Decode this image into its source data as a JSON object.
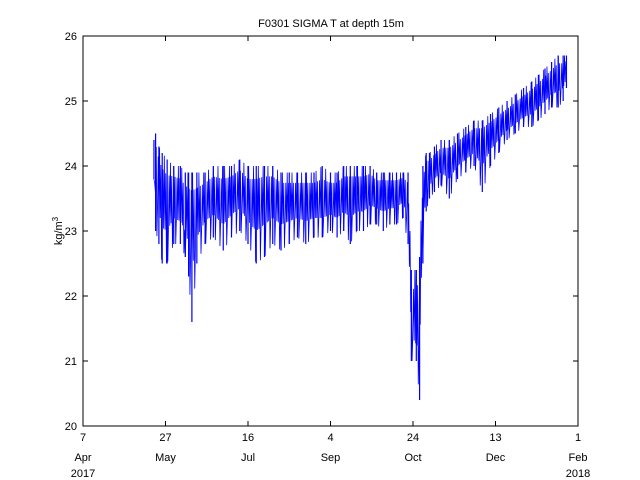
{
  "chart_data": {
    "type": "line",
    "title": "F0301 SIGMA T at depth 15m",
    "xlabel": "",
    "ylabel": "kg/m3",
    "ylabel_base": "kg/m",
    "ylabel_superscript": "3",
    "grid": false,
    "legend": "none",
    "series_color": "#0000ff",
    "xlim": [
      "2017-04-07",
      "2018-02-01"
    ],
    "ylim": [
      20,
      26
    ],
    "y_ticks": [
      20,
      21,
      22,
      23,
      24,
      25,
      26
    ],
    "x_ticks": [
      {
        "date": "2017-04-07",
        "day": "7",
        "month": "Apr",
        "year": "2017"
      },
      {
        "date": "2017-05-27",
        "day": "27",
        "month": "May",
        "year": ""
      },
      {
        "date": "2017-07-16",
        "day": "16",
        "month": "Jul",
        "year": ""
      },
      {
        "date": "2017-09-04",
        "day": "4",
        "month": "Sep",
        "year": ""
      },
      {
        "date": "2017-10-24",
        "day": "24",
        "month": "Oct",
        "year": ""
      },
      {
        "date": "2017-12-13",
        "day": "13",
        "month": "Dec",
        "year": ""
      },
      {
        "date": "2018-02-01",
        "day": "1",
        "month": "Feb",
        "year": "2018"
      }
    ],
    "series": [
      {
        "x": [
          "2017-05-20",
          "2017-05-21",
          "2017-05-23",
          "2017-05-25",
          "2017-05-28",
          "2017-06-01",
          "2017-06-05",
          "2017-06-08",
          "2017-06-10",
          "2017-06-12",
          "2017-06-15",
          "2017-06-20",
          "2017-06-25",
          "2017-07-01",
          "2017-07-06",
          "2017-07-11",
          "2017-07-16",
          "2017-07-21",
          "2017-07-26",
          "2017-07-31",
          "2017-08-05",
          "2017-08-10",
          "2017-08-15",
          "2017-08-20",
          "2017-08-25",
          "2017-08-30",
          "2017-09-04",
          "2017-09-08",
          "2017-09-12",
          "2017-09-16",
          "2017-09-20",
          "2017-09-24",
          "2017-09-28",
          "2017-10-02",
          "2017-10-06",
          "2017-10-10",
          "2017-10-14",
          "2017-10-18",
          "2017-10-21",
          "2017-10-23",
          "2017-10-26",
          "2017-10-28",
          "2017-10-30",
          "2017-11-01",
          "2017-11-03",
          "2017-11-06",
          "2017-11-10",
          "2017-11-15",
          "2017-11-20",
          "2017-11-25",
          "2017-11-30",
          "2017-12-05",
          "2017-12-10",
          "2017-12-15",
          "2017-12-20",
          "2017-12-25",
          "2017-12-30",
          "2018-01-04",
          "2018-01-08",
          "2018-01-12",
          "2018-01-16",
          "2018-01-20",
          "2018-01-23",
          "2018-01-25"
        ],
        "high": [
          24.4,
          24.5,
          24.3,
          24.2,
          24.1,
          24.0,
          24.0,
          23.9,
          23.9,
          23.9,
          23.9,
          23.9,
          24.0,
          24.0,
          24.0,
          24.1,
          24.0,
          24.0,
          24.0,
          24.0,
          23.9,
          23.9,
          23.9,
          23.9,
          23.9,
          24.0,
          23.9,
          23.9,
          24.0,
          24.0,
          24.0,
          24.0,
          24.0,
          23.9,
          23.9,
          23.9,
          23.9,
          23.9,
          23.9,
          22.4,
          22.4,
          22.6,
          24.0,
          24.2,
          24.2,
          24.3,
          24.4,
          24.4,
          24.5,
          24.6,
          24.7,
          24.7,
          24.8,
          24.9,
          25.0,
          25.1,
          25.2,
          25.3,
          25.4,
          25.5,
          25.6,
          25.7,
          25.7,
          25.7
        ],
        "low": [
          23.8,
          23.0,
          22.8,
          22.5,
          22.5,
          22.8,
          22.8,
          22.6,
          22.3,
          21.6,
          22.5,
          22.8,
          22.9,
          22.7,
          22.9,
          23.0,
          22.8,
          22.5,
          22.6,
          22.8,
          22.7,
          22.8,
          22.9,
          22.8,
          22.9,
          22.9,
          23.0,
          22.9,
          23.0,
          22.8,
          23.0,
          23.0,
          23.1,
          23.1,
          23.0,
          23.1,
          23.1,
          23.2,
          22.8,
          21.0,
          21.0,
          20.4,
          22.5,
          23.3,
          23.5,
          23.6,
          23.7,
          23.5,
          23.8,
          23.9,
          24.0,
          23.6,
          24.0,
          24.2,
          24.4,
          24.5,
          24.6,
          24.6,
          24.7,
          24.8,
          24.9,
          24.9,
          25.0,
          25.2
        ],
        "mid": [
          24.0,
          24.1,
          23.8,
          23.6,
          23.5,
          23.6,
          23.5,
          23.4,
          23.3,
          23.2,
          23.3,
          23.5,
          23.6,
          23.5,
          23.6,
          23.7,
          23.5,
          23.5,
          23.6,
          23.6,
          23.5,
          23.5,
          23.5,
          23.5,
          23.5,
          23.5,
          23.5,
          23.5,
          23.6,
          23.6,
          23.6,
          23.6,
          23.7,
          23.6,
          23.6,
          23.6,
          23.6,
          23.7,
          23.5,
          21.8,
          21.5,
          22.0,
          23.5,
          23.9,
          23.9,
          24.0,
          24.1,
          24.1,
          24.2,
          24.3,
          24.4,
          24.4,
          24.5,
          24.6,
          24.7,
          24.8,
          24.9,
          25.0,
          25.1,
          25.2,
          25.3,
          25.4,
          25.4,
          25.5
        ]
      }
    ]
  }
}
